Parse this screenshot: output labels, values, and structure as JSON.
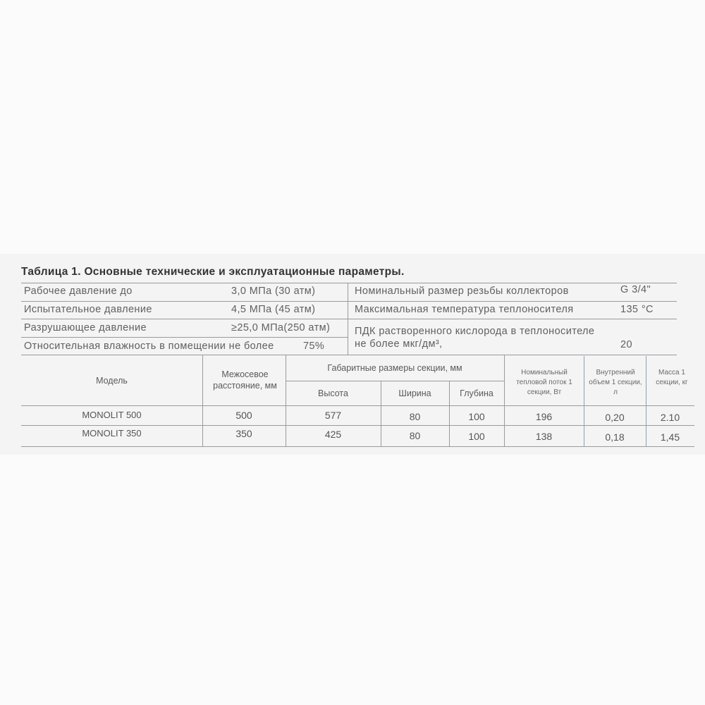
{
  "title": "Таблица 1. Основные технические и эксплуатационные параметры.",
  "params_left": [
    {
      "label": "Рабочее давление до",
      "value": "3,0 МПа (30 атм)"
    },
    {
      "label": "Испытательное давление",
      "value": "4,5 МПа (45 атм)"
    },
    {
      "label": "Разрушающее давление",
      "value": "≥25,0 МПа(250 атм)"
    },
    {
      "label": "Относительная влажность в помещении не более",
      "value": "75%"
    }
  ],
  "params_right": [
    {
      "label": "Номинальный размер резьбы коллекторов",
      "value": "G 3/4\""
    },
    {
      "label": "Максимальная температура теплоносителя",
      "value": "135 °C"
    },
    {
      "label_line1": "ПДК растворенного кислорода в теплоносителе",
      "label_line2": "не более мкг/дм³,",
      "value": "20"
    }
  ],
  "models_table": {
    "headers": {
      "model": "Модель",
      "center_distance": "Межосевое расстояние, мм",
      "dimensions_group": "Габаритные размеры секции, мм",
      "height": "Высота",
      "width": "Ширина",
      "depth": "Глубина",
      "heat_flow": "Номинальный тепловой поток 1 секции, Вт",
      "volume": "Внутренний объем 1 секции, л",
      "mass": "Масса 1 секции, кг"
    },
    "rows": [
      {
        "model": "MONOLIT 500",
        "center_distance": "500",
        "height": "577",
        "width": "80",
        "depth": "100",
        "heat_flow": "196",
        "volume": "0,20",
        "mass": "2.10"
      },
      {
        "model": "MONOLIT 350",
        "center_distance": "350",
        "height": "425",
        "width": "80",
        "depth": "100",
        "heat_flow": "138",
        "volume": "0,18",
        "mass": "1,45"
      }
    ]
  }
}
